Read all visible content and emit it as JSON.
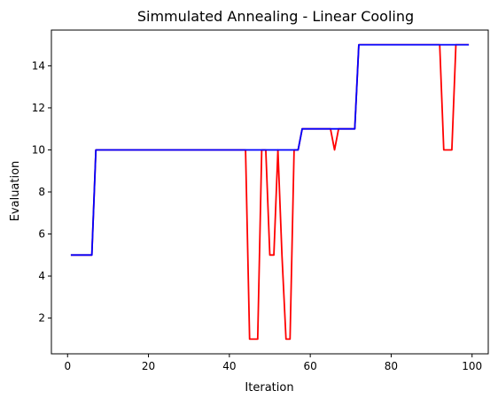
{
  "chart_data": {
    "type": "line",
    "title": "Simmulated Annealing - Linear Cooling",
    "xlabel": "Iteration",
    "ylabel": "Evaluation",
    "xlim": [
      -4,
      104
    ],
    "ylim": [
      0.3,
      15.7
    ],
    "xticks": [
      0,
      20,
      40,
      60,
      80,
      100
    ],
    "yticks": [
      2,
      4,
      6,
      8,
      10,
      12,
      14
    ],
    "grid": false,
    "legend": "none",
    "series": [
      {
        "color": "#ff0000",
        "x": [
          1,
          2,
          3,
          4,
          5,
          6,
          7,
          8,
          9,
          10,
          11,
          12,
          13,
          14,
          15,
          16,
          17,
          18,
          19,
          20,
          21,
          22,
          23,
          24,
          25,
          26,
          27,
          28,
          29,
          30,
          31,
          32,
          33,
          34,
          35,
          36,
          37,
          38,
          39,
          40,
          41,
          42,
          43,
          44,
          45,
          46,
          47,
          48,
          49,
          50,
          51,
          52,
          53,
          54,
          55,
          56,
          57,
          58,
          59,
          60,
          61,
          62,
          63,
          64,
          65,
          66,
          67,
          68,
          69,
          70,
          71,
          72,
          73,
          74,
          75,
          76,
          77,
          78,
          79,
          80,
          81,
          82,
          83,
          84,
          85,
          86,
          87,
          88,
          89,
          90,
          91,
          92,
          93,
          94,
          95,
          96,
          97,
          98,
          99
        ],
        "y": [
          5,
          5,
          5,
          5,
          5,
          5,
          10,
          10,
          10,
          10,
          10,
          10,
          10,
          10,
          10,
          10,
          10,
          10,
          10,
          10,
          10,
          10,
          10,
          10,
          10,
          10,
          10,
          10,
          10,
          10,
          10,
          10,
          10,
          10,
          10,
          10,
          10,
          10,
          10,
          10,
          10,
          10,
          10,
          10,
          1,
          1,
          1,
          10,
          10,
          5,
          5,
          10,
          5,
          1,
          1,
          10,
          10,
          11,
          11,
          11,
          11,
          11,
          11,
          11,
          11,
          10,
          11,
          11,
          11,
          11,
          11,
          15,
          15,
          15,
          15,
          15,
          15,
          15,
          15,
          15,
          15,
          15,
          15,
          15,
          15,
          15,
          15,
          15,
          15,
          15,
          15,
          15,
          10,
          10,
          10,
          15,
          15,
          15,
          15
        ]
      },
      {
        "color": "#0000ff",
        "x": [
          1,
          2,
          3,
          4,
          5,
          6,
          7,
          8,
          9,
          10,
          11,
          12,
          13,
          14,
          15,
          16,
          17,
          18,
          19,
          20,
          21,
          22,
          23,
          24,
          25,
          26,
          27,
          28,
          29,
          30,
          31,
          32,
          33,
          34,
          35,
          36,
          37,
          38,
          39,
          40,
          41,
          42,
          43,
          44,
          45,
          46,
          47,
          48,
          49,
          50,
          51,
          52,
          53,
          54,
          55,
          56,
          57,
          58,
          59,
          60,
          61,
          62,
          63,
          64,
          65,
          66,
          67,
          68,
          69,
          70,
          71,
          72,
          73,
          74,
          75,
          76,
          77,
          78,
          79,
          80,
          81,
          82,
          83,
          84,
          85,
          86,
          87,
          88,
          89,
          90,
          91,
          92,
          93,
          94,
          95,
          96,
          97,
          98,
          99
        ],
        "y": [
          5,
          5,
          5,
          5,
          5,
          5,
          10,
          10,
          10,
          10,
          10,
          10,
          10,
          10,
          10,
          10,
          10,
          10,
          10,
          10,
          10,
          10,
          10,
          10,
          10,
          10,
          10,
          10,
          10,
          10,
          10,
          10,
          10,
          10,
          10,
          10,
          10,
          10,
          10,
          10,
          10,
          10,
          10,
          10,
          10,
          10,
          10,
          10,
          10,
          10,
          10,
          10,
          10,
          10,
          10,
          10,
          10,
          11,
          11,
          11,
          11,
          11,
          11,
          11,
          11,
          11,
          11,
          11,
          11,
          11,
          11,
          15,
          15,
          15,
          15,
          15,
          15,
          15,
          15,
          15,
          15,
          15,
          15,
          15,
          15,
          15,
          15,
          15,
          15,
          15,
          15,
          15,
          15,
          15,
          15,
          15,
          15,
          15,
          15
        ]
      }
    ]
  }
}
